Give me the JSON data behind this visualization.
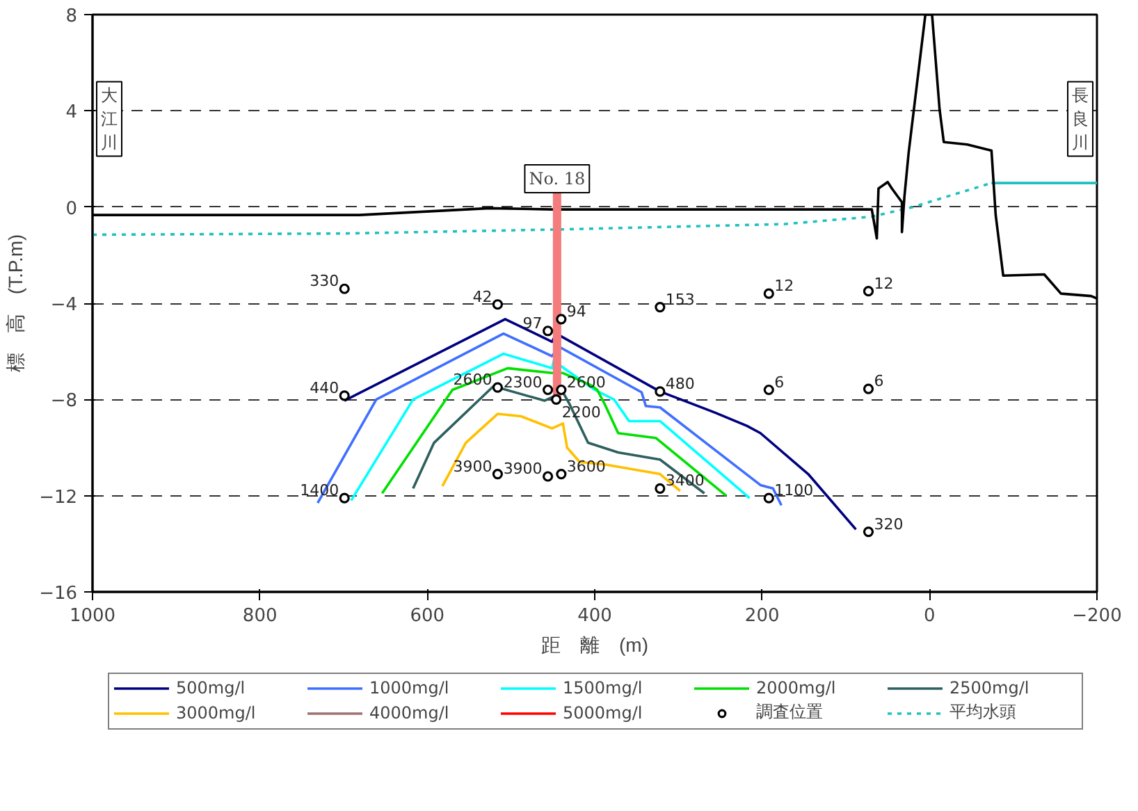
{
  "chart_data": {
    "type": "line",
    "xlabel": "距　離　(m)",
    "ylabel": "標　高　(T.P.m)",
    "xlim": [
      1000,
      -200
    ],
    "xticks": [
      1000,
      800,
      600,
      400,
      200,
      0,
      -200
    ],
    "ylim": [
      -16,
      8
    ],
    "yticks": [
      -16,
      -12,
      -8,
      -4,
      0,
      4,
      8
    ],
    "grid": "y",
    "legend": "bottom",
    "annotations": [
      "大江川",
      "長良川",
      "No. 18",
      {
        "text": "330",
        "x": 699,
        "y": -3.4
      },
      {
        "text": "42",
        "x": 516,
        "y": -4.05
      },
      {
        "text": "94",
        "x": 440,
        "y": -4.66
      },
      {
        "text": "97",
        "x": 456,
        "y": -5.15
      },
      {
        "text": "153",
        "x": 322,
        "y": -4.16
      },
      {
        "text": "12",
        "x": 192,
        "y": -3.6
      },
      {
        "text": "12",
        "x": 73,
        "y": -3.5
      },
      {
        "text": "440",
        "x": 699,
        "y": -7.84
      },
      {
        "text": "2600",
        "x": 516,
        "y": -7.5
      },
      {
        "text": "2300",
        "x": 456,
        "y": -7.6
      },
      {
        "text": "2600",
        "x": 440,
        "y": -7.6
      },
      {
        "text": "2200",
        "x": 446,
        "y": -8.0
      },
      {
        "text": "480",
        "x": 322,
        "y": -7.67
      },
      {
        "text": "6",
        "x": 192,
        "y": -7.6
      },
      {
        "text": "6",
        "x": 73,
        "y": -7.56
      },
      {
        "text": "1400",
        "x": 699,
        "y": -12.1
      },
      {
        "text": "3900",
        "x": 516,
        "y": -11.1
      },
      {
        "text": "3900",
        "x": 456,
        "y": -11.2
      },
      {
        "text": "3600",
        "x": 440,
        "y": -11.1
      },
      {
        "text": "3400",
        "x": 322,
        "y": -11.7
      },
      {
        "text": "1100",
        "x": 192,
        "y": -12.1
      },
      {
        "text": "320",
        "x": 73,
        "y": -13.5
      }
    ],
    "series": [
      {
        "name": "500mg/l",
        "color": "#00007f",
        "x": [
          699,
          507,
          451,
          446,
          322,
          256,
          218,
          202,
          145,
          88
        ],
        "values": [
          -8.05,
          -4.66,
          -5.6,
          -5.26,
          -7.67,
          -8.55,
          -9.1,
          -9.4,
          -11.1,
          -13.4
        ]
      },
      {
        "name": "1000mg/l",
        "color": "#3f6fff",
        "x": [
          731,
          661,
          509,
          451,
          443,
          344,
          339,
          322,
          202,
          187,
          177
        ],
        "values": [
          -12.3,
          -8.0,
          -5.26,
          -6.2,
          -5.8,
          -7.7,
          -8.27,
          -8.33,
          -11.56,
          -11.7,
          -12.4
        ]
      },
      {
        "name": "1500mg/l",
        "color": "#00ffff",
        "x": [
          691,
          617,
          509,
          451,
          449,
          400,
          377,
          359,
          322,
          215
        ],
        "values": [
          -12.2,
          -8.0,
          -6.1,
          -6.7,
          -6.4,
          -7.6,
          -8.0,
          -8.9,
          -8.9,
          -12.1
        ]
      },
      {
        "name": "2000mg/l",
        "color": "#00e000",
        "x": [
          654,
          570,
          504,
          451,
          438,
          405,
          397,
          388,
          372,
          327,
          243
        ],
        "values": [
          -11.9,
          -7.6,
          -6.7,
          -6.9,
          -6.9,
          -7.4,
          -7.6,
          -8.2,
          -9.4,
          -9.6,
          -12.0
        ]
      },
      {
        "name": "2500mg/l",
        "color": "#2f5f5f",
        "x": [
          617,
          592,
          521,
          460,
          438,
          430,
          408,
          372,
          322,
          269
        ],
        "values": [
          -11.7,
          -9.8,
          -7.45,
          -8.05,
          -7.7,
          -8.2,
          -9.8,
          -10.2,
          -10.5,
          -11.9
        ]
      },
      {
        "name": "3000mg/l",
        "color": "#ffc000",
        "x": [
          582,
          554,
          516,
          488,
          451,
          438,
          433,
          418,
          388,
          322,
          298
        ],
        "values": [
          -11.6,
          -9.8,
          -8.6,
          -8.7,
          -9.2,
          -9.0,
          -10.0,
          -10.6,
          -10.7,
          -11.1,
          -11.8
        ]
      },
      {
        "name": "4000mg/l",
        "color": "#a07070"
      },
      {
        "name": "5000mg/l",
        "color": "#ff0000"
      },
      {
        "name": "調査位置",
        "type": "scatter",
        "marker": "circle",
        "color": "#000000",
        "x": [
          699,
          516,
          440,
          456,
          322,
          192,
          73,
          699,
          516,
          456,
          440,
          446,
          322,
          192,
          73,
          699,
          516,
          456,
          440,
          322,
          192,
          73
        ],
        "values": [
          -3.4,
          -4.05,
          -4.66,
          -5.15,
          -4.16,
          -3.6,
          -3.5,
          -7.84,
          -7.5,
          -7.6,
          -7.6,
          -8.0,
          -7.67,
          -7.6,
          -7.56,
          -12.1,
          -11.1,
          -11.2,
          -11.1,
          -11.7,
          -12.1,
          -13.5
        ]
      },
      {
        "name": "平均水頭",
        "color": "#20c0c0",
        "line_style": "dotted",
        "x": [
          1000,
          700,
          440,
          174,
          69,
          20,
          -74
        ],
        "values": [
          -1.15,
          -1.1,
          -0.93,
          -0.71,
          -0.4,
          0.0,
          1.0
        ]
      },
      {
        "color": "#20c0c0",
        "x": [
          -74,
          -200
        ],
        "values": [
          1.0,
          1.0
        ]
      },
      {
        "color": "#000000",
        "x": [
          1000,
          681,
          526,
          450,
          69,
          63,
          61,
          50,
          45,
          33,
          33,
          30,
          25,
          13,
          5,
          -3,
          -12,
          -17,
          -45,
          -74,
          -79,
          -88,
          -137,
          -157,
          -193,
          -200
        ],
        "values": [
          -0.33,
          -0.33,
          -0.05,
          -0.1,
          -0.1,
          -1.3,
          0.77,
          1.04,
          0.77,
          0.2,
          -1.04,
          0.44,
          2.25,
          5.7,
          8,
          8,
          4.05,
          2.7,
          2.6,
          2.35,
          -0.33,
          -2.85,
          -2.8,
          -3.6,
          -3.7,
          -3.8
        ]
      },
      {
        "type": "bar",
        "color": "#f47c7c",
        "x": [
          445
        ],
        "base": [
          -8.05
        ],
        "values": [
          8.65
        ]
      }
    ]
  }
}
